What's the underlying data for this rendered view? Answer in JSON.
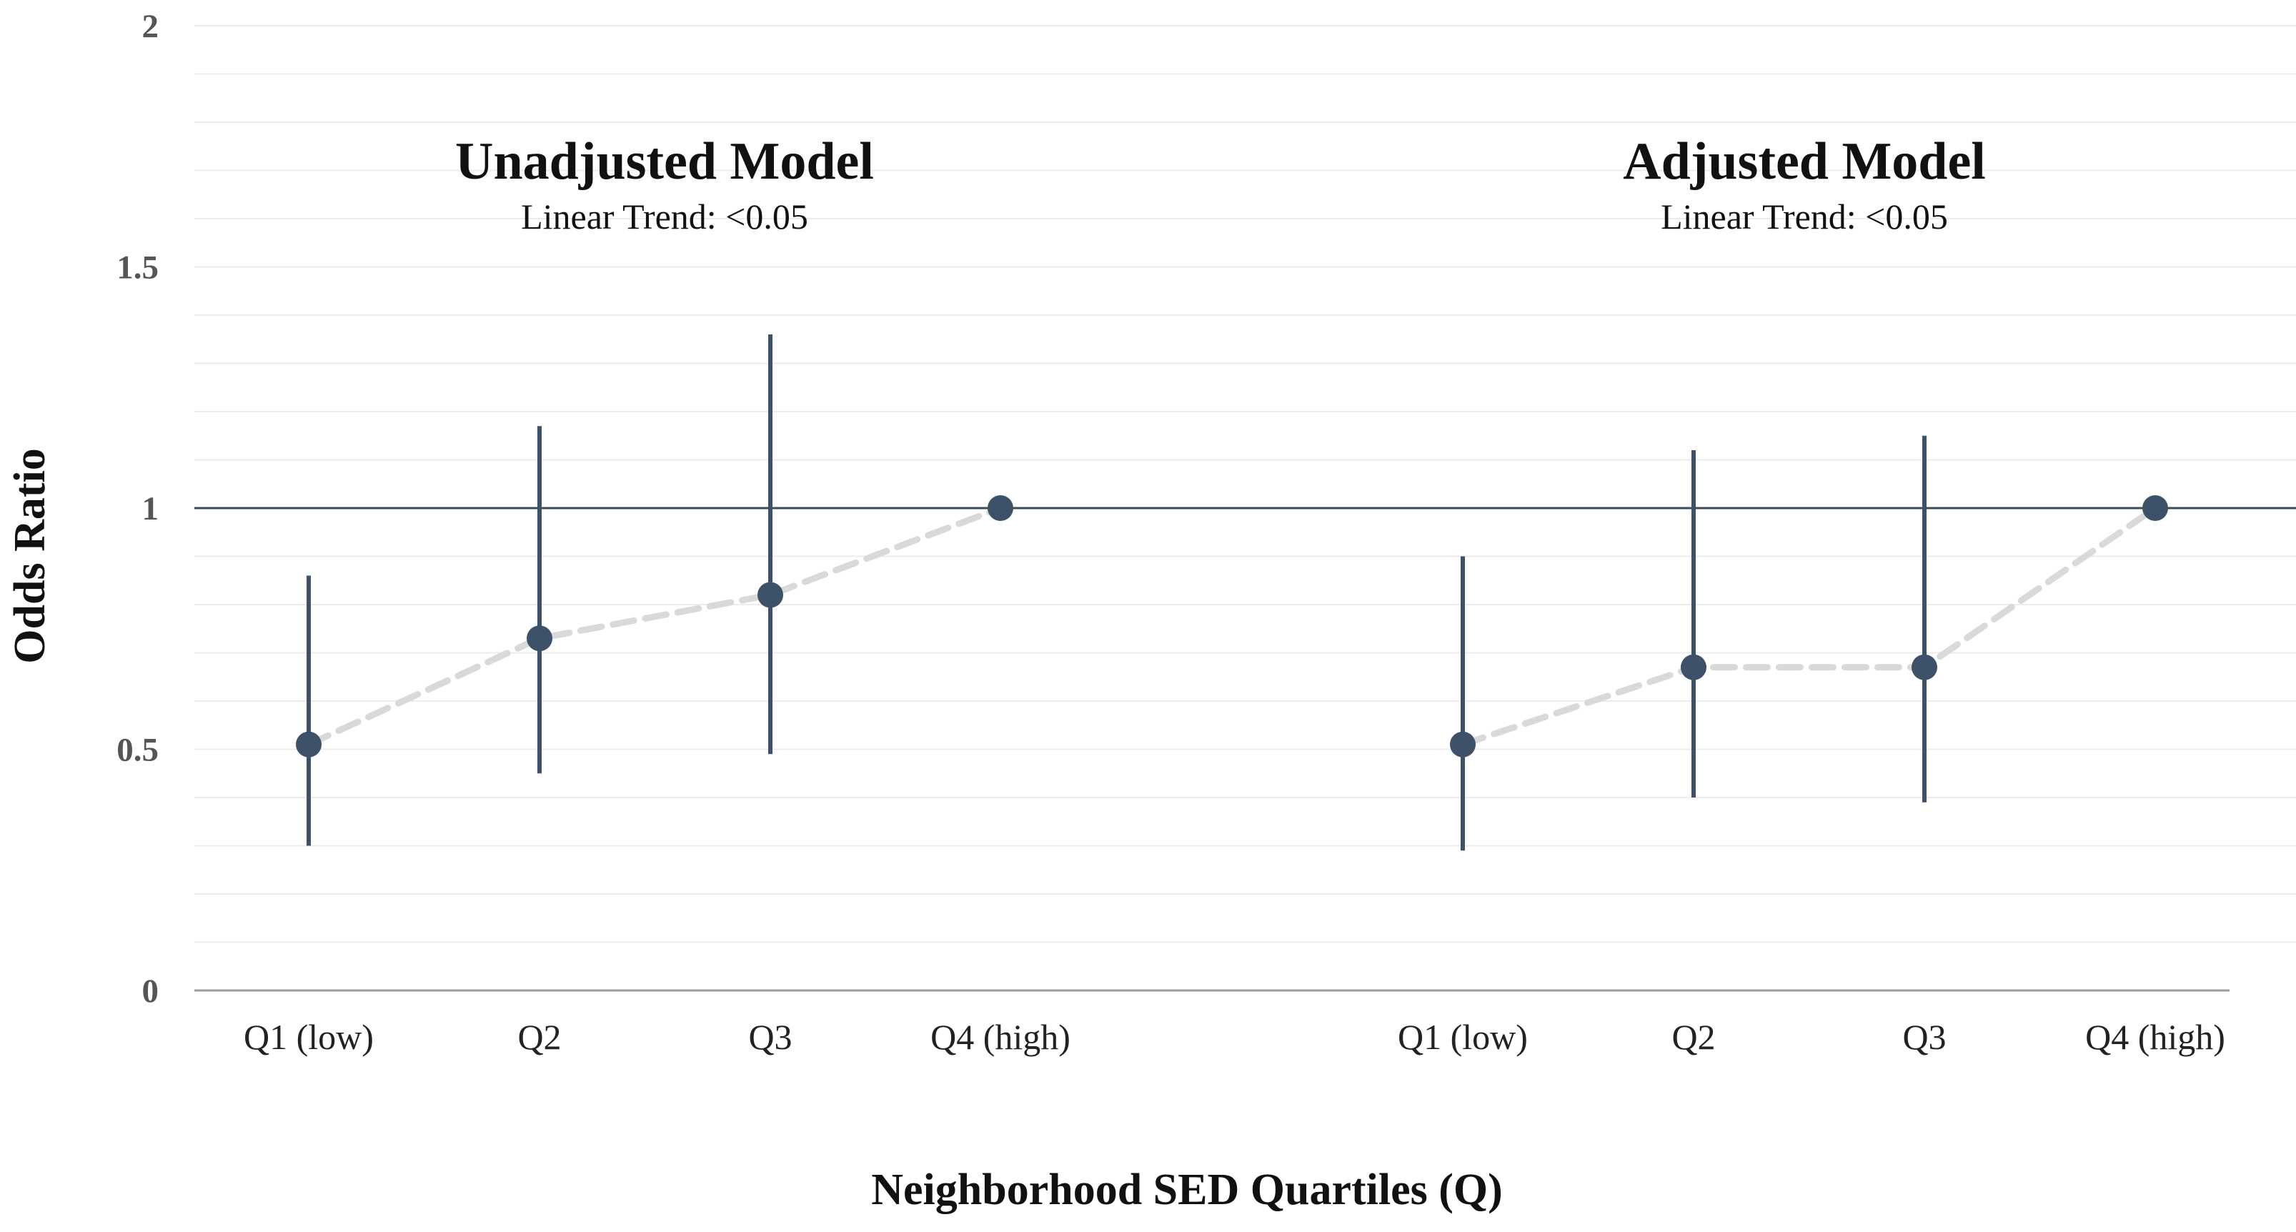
{
  "chart_data": {
    "type": "scatter",
    "ylabel": "Odds Ratio",
    "xlabel": "Neighborhood SED Quartiles (Q)",
    "ylim": [
      0,
      2
    ],
    "y_ticks": [
      {
        "value": 0,
        "label": "0"
      },
      {
        "value": 0.5,
        "label": "0.5"
      },
      {
        "value": 1,
        "label": "1"
      },
      {
        "value": 1.5,
        "label": "1.5"
      },
      {
        "value": 2,
        "label": "2"
      }
    ],
    "reference_line": 1,
    "grid": true,
    "colors": {
      "point": "#3d5268",
      "error_bar": "#3d5268",
      "trend": "#d9d9d9",
      "reference": "#3d4a57",
      "grid": "#ececec",
      "axis": "#9e9e9e"
    },
    "panels": [
      {
        "title": "Unadjusted Model",
        "subtitle": "Linear Trend: <0.05",
        "categories": [
          "Q1 (low)",
          "Q2",
          "Q3",
          "Q4 (high)"
        ],
        "odds_ratio": [
          0.51,
          0.73,
          0.82,
          1.0
        ],
        "ci_lower": [
          0.3,
          0.45,
          0.49,
          1.0
        ],
        "ci_upper": [
          0.86,
          1.17,
          1.36,
          1.0
        ]
      },
      {
        "title": "Adjusted Model",
        "subtitle": "Linear Trend: <0.05",
        "categories": [
          "Q1 (low)",
          "Q2",
          "Q3",
          "Q4 (high)"
        ],
        "odds_ratio": [
          0.51,
          0.67,
          0.67,
          1.0
        ],
        "ci_lower": [
          0.29,
          0.4,
          0.39,
          1.0
        ],
        "ci_upper": [
          0.9,
          1.12,
          1.15,
          1.0
        ]
      }
    ]
  }
}
